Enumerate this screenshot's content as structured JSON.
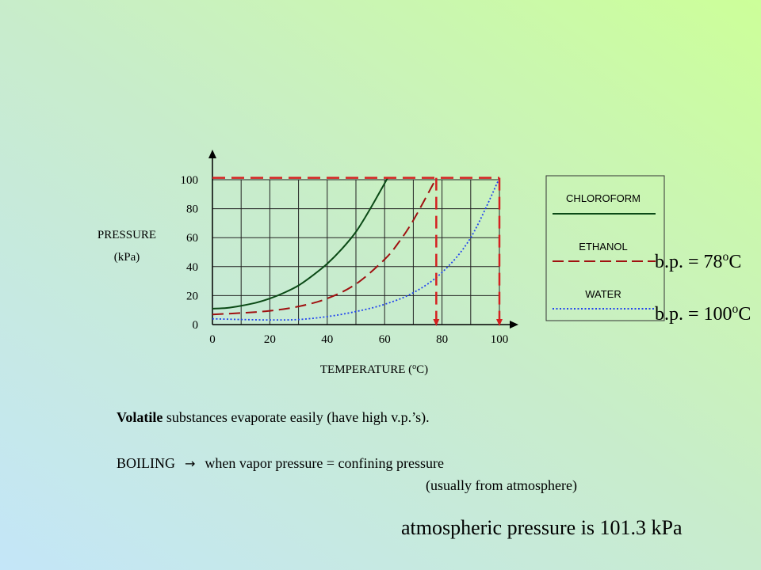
{
  "chart_data": {
    "type": "line",
    "xlabel": "TEMPERATURE (",
    "xlabel_sup": "o",
    "xlabel_tail": "C)",
    "ylabel_line1": "PRESSURE",
    "ylabel_line2": "(kPa)",
    "xlim": [
      0,
      100
    ],
    "ylim": [
      0,
      100
    ],
    "x_ticks": [
      "0",
      "20",
      "40",
      "60",
      "80",
      "100"
    ],
    "y_ticks": [
      "0",
      "20",
      "40",
      "60",
      "80",
      "100"
    ],
    "grid": true,
    "legend_position": "right",
    "series": [
      {
        "name": "CHLOROFORM",
        "color": "#0b4a16",
        "style": "solid",
        "x": [
          0,
          5,
          10,
          15,
          20,
          25,
          30,
          35,
          40,
          45,
          50,
          55,
          61
        ],
        "y": [
          11,
          11.5,
          13,
          15,
          18,
          22,
          27,
          34,
          42,
          52,
          64,
          80,
          101
        ]
      },
      {
        "name": "ETHANOL",
        "color": "#a01010",
        "style": "dashed",
        "x": [
          0,
          10,
          20,
          30,
          40,
          50,
          60,
          65,
          70,
          78
        ],
        "y": [
          7,
          8,
          9.5,
          12.5,
          18,
          28,
          45,
          57,
          72,
          101
        ]
      },
      {
        "name": "WATER",
        "color": "#2244ee",
        "style": "dotted",
        "x": [
          0,
          10,
          20,
          30,
          40,
          50,
          60,
          70,
          80,
          90,
          100
        ],
        "y": [
          4,
          3.5,
          3.2,
          3.5,
          5.5,
          9,
          14,
          22,
          36,
          60,
          101
        ]
      }
    ],
    "reference_lines": [
      {
        "type": "horizontal",
        "y": 101.3,
        "x_from": 0,
        "x_to": 100,
        "color": "#d42020"
      },
      {
        "type": "vertical",
        "x": 78,
        "y_from": 101.3,
        "y_to": 0,
        "color": "#d42020"
      },
      {
        "type": "vertical",
        "x": 100,
        "y_from": 101.3,
        "y_to": 0,
        "color": "#d42020"
      }
    ]
  },
  "annotations": {
    "bp_ethanol": "b.p. = 78",
    "bp_ethanol_sup": "o",
    "bp_ethanol_tail": "C",
    "bp_water": "b.p. = 100",
    "bp_water_sup": "o",
    "bp_water_tail": "C"
  },
  "text": {
    "volatile_bold": "Volatile",
    "volatile_rest": " substances evaporate easily (have high v.p.’s).",
    "boiling_word": "BOILING",
    "boiling_arrow": "→",
    "boiling_rest": "when vapor pressure = confining pressure",
    "usually": "(usually from atmosphere)",
    "atmospheric": "atmospheric pressure is 101.3 kPa"
  }
}
